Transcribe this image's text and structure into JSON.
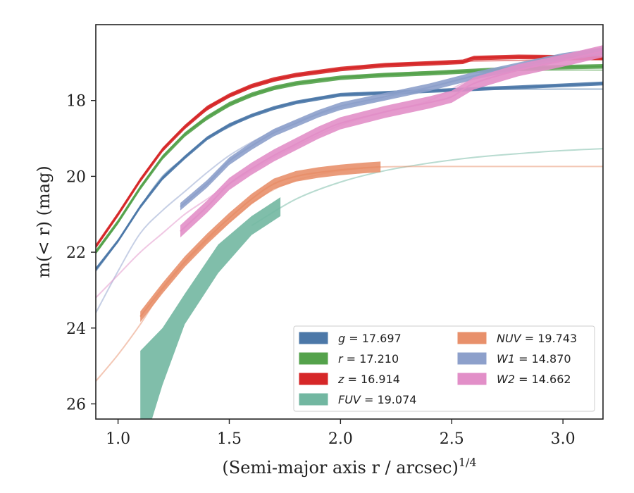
{
  "chart_data": {
    "type": "line",
    "xlabel": "(Semi-major axis r / arcsec)",
    "xlabel_sup": "1/4",
    "ylabel": "m(< r) (mag)",
    "xlim": [
      0.9,
      3.18
    ],
    "ylim": [
      26.4,
      16.0
    ],
    "y_inverted": true,
    "xticks": [
      "1.0",
      "1.5",
      "2.0",
      "2.5",
      "3.0"
    ],
    "yticks": [
      "18",
      "20",
      "22",
      "24",
      "26"
    ],
    "grid": false,
    "legend_position": "lower-right",
    "series": [
      {
        "name": "g = 17.697",
        "color": "#4c78a8",
        "fit": {
          "x": [
            0.9,
            1.0,
            1.1,
            1.2,
            1.3,
            1.4,
            1.5,
            1.6,
            1.7,
            1.8,
            2.0,
            2.2,
            2.5,
            3.0,
            3.18
          ],
          "y": [
            22.5,
            21.7,
            20.8,
            20.0,
            19.5,
            19.0,
            18.7,
            18.4,
            18.2,
            18.05,
            17.87,
            17.8,
            17.72,
            17.7,
            17.7
          ]
        },
        "obs": {
          "x": [
            0.9,
            1.0,
            1.1,
            1.2,
            1.3,
            1.4,
            1.5,
            1.6,
            1.7,
            1.8,
            2.0,
            2.2,
            2.4,
            2.6,
            2.8,
            3.0,
            3.18
          ],
          "y": [
            22.45,
            21.7,
            20.8,
            20.05,
            19.5,
            19.0,
            18.65,
            18.4,
            18.2,
            18.05,
            17.85,
            17.8,
            17.75,
            17.7,
            17.65,
            17.6,
            17.55
          ]
        },
        "band": 0.05
      },
      {
        "name": "r = 17.210",
        "color": "#54a24b",
        "fit": {
          "x": [
            0.9,
            1.0,
            1.1,
            1.2,
            1.3,
            1.4,
            1.5,
            1.6,
            1.7,
            1.8,
            2.0,
            2.2,
            2.5,
            3.0,
            3.18
          ],
          "y": [
            22.0,
            21.2,
            20.3,
            19.5,
            18.9,
            18.5,
            18.15,
            17.9,
            17.7,
            17.55,
            17.4,
            17.3,
            17.22,
            17.2,
            17.2
          ]
        },
        "obs": {
          "x": [
            0.9,
            1.0,
            1.1,
            1.2,
            1.3,
            1.4,
            1.5,
            1.6,
            1.7,
            1.8,
            2.0,
            2.2,
            2.4,
            2.6,
            2.8,
            3.0,
            3.18
          ],
          "y": [
            22.0,
            21.2,
            20.3,
            19.5,
            18.9,
            18.45,
            18.1,
            17.85,
            17.67,
            17.55,
            17.4,
            17.33,
            17.28,
            17.22,
            17.16,
            17.12,
            17.1
          ]
        },
        "band": 0.06
      },
      {
        "name": "z = 16.914",
        "color": "#d62728",
        "fit": {
          "x": [
            0.9,
            1.0,
            1.1,
            1.2,
            1.3,
            1.4,
            1.5,
            1.6,
            1.7,
            1.8,
            2.0,
            2.2,
            2.5,
            3.0,
            3.18
          ],
          "y": [
            21.85,
            21.0,
            20.1,
            19.3,
            18.7,
            18.25,
            17.9,
            17.65,
            17.47,
            17.35,
            17.17,
            17.05,
            16.97,
            16.93,
            16.92
          ]
        },
        "obs": {
          "x": [
            0.9,
            1.0,
            1.1,
            1.2,
            1.3,
            1.4,
            1.5,
            1.6,
            1.7,
            1.8,
            2.0,
            2.2,
            2.4,
            2.55,
            2.6,
            2.8,
            3.0,
            3.18
          ],
          "y": [
            21.85,
            21.0,
            20.1,
            19.3,
            18.7,
            18.2,
            17.87,
            17.62,
            17.45,
            17.33,
            17.17,
            17.07,
            17.02,
            16.98,
            16.88,
            16.85,
            16.86,
            16.88
          ]
        },
        "band": 0.06
      },
      {
        "name": "FUV = 19.074",
        "color": "#72b7a1",
        "fit": {
          "x": [
            1.6,
            1.8,
            2.0,
            2.2,
            2.4,
            2.6,
            2.8,
            3.0,
            3.18
          ],
          "y": [
            21.3,
            20.6,
            20.15,
            19.85,
            19.65,
            19.5,
            19.4,
            19.32,
            19.27
          ]
        },
        "band_poly": {
          "upper": [
            [
              1.1,
              24.6
            ],
            [
              1.2,
              24.0
            ],
            [
              1.3,
              23.1
            ],
            [
              1.45,
              21.8
            ],
            [
              1.6,
              21.05
            ],
            [
              1.73,
              20.55
            ]
          ],
          "lower": [
            [
              1.73,
              21.05
            ],
            [
              1.6,
              21.55
            ],
            [
              1.45,
              22.55
            ],
            [
              1.3,
              23.9
            ],
            [
              1.2,
              25.5
            ],
            [
              1.15,
              26.45
            ],
            [
              1.1,
              26.45
            ]
          ]
        }
      },
      {
        "name": "NUV = 19.743",
        "color": "#e8906b",
        "fit": {
          "x": [
            0.9,
            1.0,
            1.1,
            1.2,
            1.3,
            1.4,
            1.5,
            1.6,
            1.7,
            1.8,
            2.0,
            2.2,
            2.5,
            3.0,
            3.18
          ],
          "y": [
            25.4,
            24.7,
            23.9,
            23.0,
            22.3,
            21.7,
            21.2,
            20.7,
            20.35,
            20.1,
            19.85,
            19.75,
            19.74,
            19.74,
            19.74
          ]
        },
        "obs": {
          "x": [
            1.1,
            1.2,
            1.3,
            1.4,
            1.5,
            1.6,
            1.7,
            1.8,
            1.9,
            2.0,
            2.1,
            2.18
          ],
          "y": [
            23.7,
            22.95,
            22.25,
            21.65,
            21.1,
            20.6,
            20.2,
            20.0,
            19.9,
            19.83,
            19.78,
            19.75
          ]
        },
        "band": 0.14
      },
      {
        "name": "W1 = 14.870",
        "color": "#8da0cb",
        "fit": {
          "x": [
            0.9,
            1.0,
            1.1,
            1.2,
            1.3,
            1.4,
            1.5,
            1.6,
            1.7,
            1.8,
            2.0,
            2.2,
            2.4,
            2.6,
            2.8,
            3.0,
            3.18
          ],
          "y": [
            23.6,
            22.5,
            21.5,
            20.9,
            20.4,
            19.9,
            19.45,
            19.1,
            18.8,
            18.55,
            18.2,
            17.95,
            17.65,
            17.35,
            17.05,
            16.8,
            16.65
          ]
        },
        "obs": {
          "x": [
            1.28,
            1.4,
            1.5,
            1.6,
            1.7,
            1.8,
            1.9,
            2.0,
            2.2,
            2.4,
            2.6,
            2.8,
            3.0,
            3.18
          ],
          "y": [
            20.8,
            20.2,
            19.6,
            19.2,
            18.85,
            18.6,
            18.35,
            18.15,
            17.9,
            17.65,
            17.35,
            17.1,
            16.85,
            16.7
          ]
        },
        "band": 0.1
      },
      {
        "name": "W2 = 14.662",
        "color": "#e28fc8",
        "fit": {
          "x": [
            0.9,
            1.0,
            1.1,
            1.2,
            1.3,
            1.4,
            1.5,
            1.6,
            1.7,
            1.8,
            2.0,
            2.2,
            2.4,
            2.6,
            2.8,
            3.0,
            3.18
          ],
          "y": [
            23.2,
            22.6,
            22.0,
            21.5,
            21.0,
            20.6,
            20.2,
            19.85,
            19.5,
            19.2,
            18.65,
            18.3,
            18.0,
            17.4,
            17.1,
            16.85,
            16.65
          ]
        },
        "obs": {
          "x": [
            1.28,
            1.4,
            1.5,
            1.6,
            1.7,
            1.8,
            1.9,
            2.0,
            2.2,
            2.4,
            2.5,
            2.6,
            2.8,
            3.0,
            3.18
          ],
          "y": [
            21.45,
            20.8,
            20.2,
            19.8,
            19.45,
            19.15,
            18.85,
            18.6,
            18.3,
            18.05,
            17.9,
            17.55,
            17.2,
            16.95,
            16.7
          ]
        },
        "band": 0.16
      }
    ]
  }
}
